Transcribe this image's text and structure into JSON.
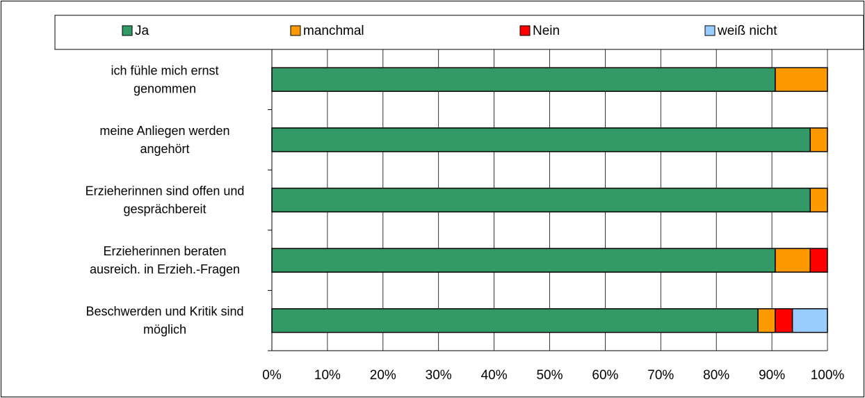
{
  "chart_data": {
    "type": "bar",
    "orientation": "horizontal",
    "stacked": true,
    "percent_stacked": true,
    "categories": [
      [
        "ich fühle mich ernst",
        "genommen"
      ],
      [
        "meine Anliegen werden",
        "angehört"
      ],
      [
        "Erzieherinnen sind offen und",
        "gesprächbereit"
      ],
      [
        "Erzieherinnen beraten",
        "ausreich. in Erzieh.-Fragen"
      ],
      [
        "Beschwerden und Kritik sind",
        "möglich"
      ]
    ],
    "series": [
      {
        "name": "Ja",
        "color": "#339966",
        "values": [
          90.6,
          96.9,
          96.9,
          90.6,
          87.5
        ]
      },
      {
        "name": "manchmal",
        "color": "#ff9900",
        "values": [
          9.4,
          3.1,
          3.1,
          6.3,
          3.1
        ]
      },
      {
        "name": "Nein",
        "color": "#ff0000",
        "values": [
          0,
          0,
          0,
          3.1,
          3.1
        ]
      },
      {
        "name": "weiß nicht",
        "color": "#99ccff",
        "values": [
          0,
          0,
          0,
          0,
          6.3
        ]
      }
    ],
    "xlim": [
      0,
      100
    ],
    "xticks": [
      "0%",
      "10%",
      "20%",
      "30%",
      "40%",
      "50%",
      "60%",
      "70%",
      "80%",
      "90%",
      "100%"
    ],
    "grid": true,
    "legend_position": "top",
    "title": "",
    "xlabel": "",
    "ylabel": ""
  }
}
